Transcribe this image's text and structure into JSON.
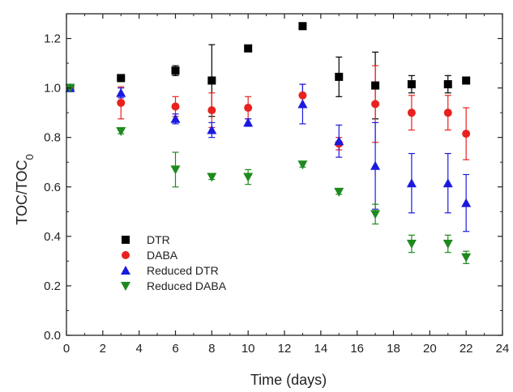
{
  "chart_data": {
    "type": "scatter",
    "xlabel": "Time (days)",
    "ylabel": "TOC/TOC",
    "ylabel_subscript": "0",
    "xlim": [
      0,
      24
    ],
    "ylim": [
      0.0,
      1.3
    ],
    "xticks": [
      0,
      2,
      4,
      6,
      8,
      10,
      12,
      14,
      16,
      18,
      20,
      22,
      24
    ],
    "yticks": [
      0.0,
      0.2,
      0.4,
      0.6,
      0.8,
      1.0,
      1.2
    ],
    "xtick_labels": [
      "0",
      "2",
      "4",
      "6",
      "8",
      "10",
      "12",
      "14",
      "16",
      "18",
      "20",
      "22",
      "24"
    ],
    "ytick_labels": [
      "0.0",
      "0.2",
      "0.4",
      "0.6",
      "0.8",
      "1.0",
      "1.2"
    ],
    "grid": false,
    "legend_position": "lower-left",
    "series": [
      {
        "name": "DTR",
        "marker": "square",
        "color": "#000000",
        "points": [
          {
            "x": 0.2,
            "y": 1.0,
            "err": 0.0
          },
          {
            "x": 3,
            "y": 1.04,
            "err": 0.01
          },
          {
            "x": 6,
            "y": 1.07,
            "err": 0.02
          },
          {
            "x": 8,
            "y": 1.03,
            "err": 0.145
          },
          {
            "x": 10,
            "y": 1.16,
            "err": 0.005
          },
          {
            "x": 13,
            "y": 1.25,
            "err": 0.01
          },
          {
            "x": 15,
            "y": 1.045,
            "err": 0.08
          },
          {
            "x": 17,
            "y": 1.01,
            "err": 0.135
          },
          {
            "x": 19,
            "y": 1.015,
            "err": 0.035
          },
          {
            "x": 21,
            "y": 1.015,
            "err": 0.035
          },
          {
            "x": 22,
            "y": 1.03,
            "err": 0.01
          }
        ]
      },
      {
        "name": "DABA",
        "marker": "circle",
        "color": "#e8221f",
        "points": [
          {
            "x": 0.2,
            "y": 1.0,
            "err": 0.0
          },
          {
            "x": 3,
            "y": 0.94,
            "err": 0.065
          },
          {
            "x": 6,
            "y": 0.925,
            "err": 0.04
          },
          {
            "x": 8,
            "y": 0.91,
            "err": 0.07
          },
          {
            "x": 10,
            "y": 0.92,
            "err": 0.045
          },
          {
            "x": 13,
            "y": 0.97,
            "err": 0.045
          },
          {
            "x": 15,
            "y": 0.775,
            "err": 0.025
          },
          {
            "x": 17,
            "y": 0.935,
            "err": 0.155
          },
          {
            "x": 19,
            "y": 0.9,
            "err": 0.07
          },
          {
            "x": 21,
            "y": 0.9,
            "err": 0.07
          },
          {
            "x": 22,
            "y": 0.815,
            "err": 0.105
          }
        ]
      },
      {
        "name": "Reduced DTR",
        "marker": "triangle-up",
        "color": "#1a1adf",
        "points": [
          {
            "x": 0.2,
            "y": 1.0,
            "err": 0.0
          },
          {
            "x": 3,
            "y": 0.98,
            "err": 0.02
          },
          {
            "x": 6,
            "y": 0.875,
            "err": 0.02
          },
          {
            "x": 8,
            "y": 0.83,
            "err": 0.03
          },
          {
            "x": 10,
            "y": 0.86,
            "err": 0.015
          },
          {
            "x": 13,
            "y": 0.935,
            "err": 0.08
          },
          {
            "x": 15,
            "y": 0.785,
            "err": 0.065
          },
          {
            "x": 17,
            "y": 0.685,
            "err": 0.175
          },
          {
            "x": 19,
            "y": 0.615,
            "err": 0.12
          },
          {
            "x": 21,
            "y": 0.615,
            "err": 0.12
          },
          {
            "x": 22,
            "y": 0.535,
            "err": 0.115
          }
        ]
      },
      {
        "name": "Reduced DABA",
        "marker": "triangle-down",
        "color": "#1e8a1e",
        "points": [
          {
            "x": 0.2,
            "y": 1.0,
            "err": 0.0
          },
          {
            "x": 3,
            "y": 0.825,
            "err": 0.01
          },
          {
            "x": 6,
            "y": 0.67,
            "err": 0.07
          },
          {
            "x": 8,
            "y": 0.64,
            "err": 0.01
          },
          {
            "x": 10,
            "y": 0.64,
            "err": 0.03
          },
          {
            "x": 13,
            "y": 0.69,
            "err": 0.01
          },
          {
            "x": 15,
            "y": 0.58,
            "err": 0.01
          },
          {
            "x": 17,
            "y": 0.49,
            "err": 0.04
          },
          {
            "x": 19,
            "y": 0.37,
            "err": 0.035
          },
          {
            "x": 21,
            "y": 0.37,
            "err": 0.035
          },
          {
            "x": 22,
            "y": 0.315,
            "err": 0.025
          }
        ]
      }
    ]
  }
}
